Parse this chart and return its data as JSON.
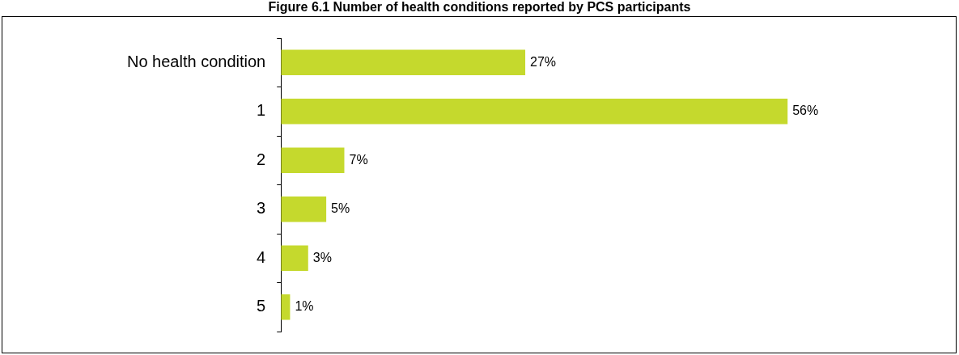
{
  "chart_data": {
    "type": "bar",
    "orientation": "horizontal",
    "title": "Figure 6.1 Number of health conditions reported by PCS participants",
    "categories": [
      "No health condition",
      "1",
      "2",
      "3",
      "4",
      "5"
    ],
    "values": [
      27,
      56,
      7,
      5,
      3,
      1
    ],
    "value_labels": [
      "27%",
      "56%",
      "7%",
      "5%",
      "3%",
      "1%"
    ],
    "color": "#c5d92d"
  }
}
